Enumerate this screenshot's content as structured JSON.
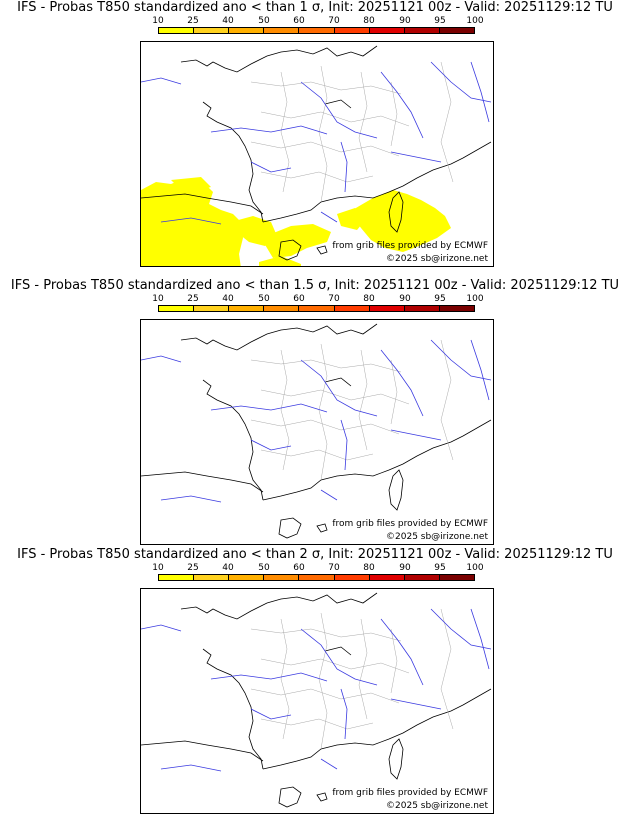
{
  "legend": {
    "ticks": [
      "10",
      "25",
      "40",
      "50",
      "60",
      "70",
      "80",
      "90",
      "95",
      "100"
    ],
    "colors": [
      "#ffff00",
      "#ffd21f",
      "#ffb000",
      "#ff8c00",
      "#ff6a00",
      "#ff3c00",
      "#e00000",
      "#b00000",
      "#7a0000"
    ]
  },
  "credits": {
    "source": "from grib files provided by ECMWF",
    "copyright": "©2025 sb@irizone.net"
  },
  "panels": [
    {
      "title": "IFS - Probas T850  standardized ano < than 1 σ, Init: 20251121 00z - Valid: 20251129:12 TU",
      "has_fill": true
    },
    {
      "title": "IFS - Probas T850  standardized ano < than 1.5 σ, Init: 20251121 00z - Valid: 20251129:12 TU",
      "has_fill": false
    },
    {
      "title": "IFS - Probas T850  standardized ano < than 2 σ, Init: 20251121 00z - Valid: 20251129:12 TU",
      "has_fill": false
    }
  ]
}
